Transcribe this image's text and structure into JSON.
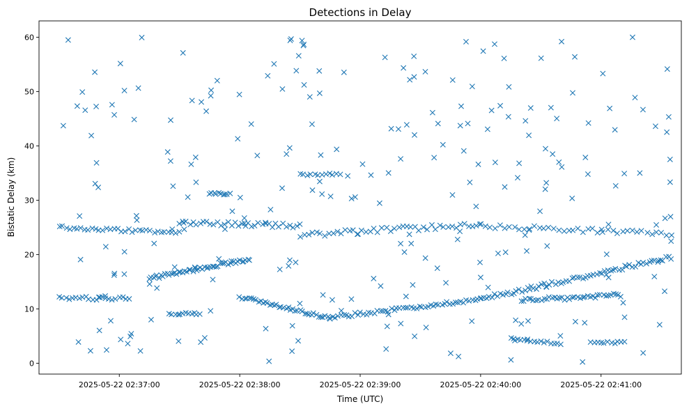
{
  "chart_data": {
    "type": "scatter",
    "title": "Detections in Delay",
    "xlabel": "Time (UTC)",
    "ylabel": "Bistatic Delay (km)",
    "marker": "x",
    "marker_color": "#1f77b4",
    "grid": false,
    "xlim": [
      "2025-05-22 02:36:20",
      "2025-05-22 02:41:40"
    ],
    "ylim": [
      -2,
      63
    ],
    "x_ticks": [
      "2025-05-22 02:37:00",
      "2025-05-22 02:38:00",
      "2025-05-22 02:39:00",
      "2025-05-22 02:40:00",
      "2025-05-22 02:41:00"
    ],
    "y_ticks": [
      0,
      10,
      20,
      30,
      40,
      50,
      60
    ],
    "tracks": [
      {
        "start": "2025-05-22 02:36:30",
        "end": "2025-05-22 02:37:30",
        "delay_start": 25.0,
        "delay_end": 24.0,
        "count": 34,
        "jitter": 0.3
      },
      {
        "start": "2025-05-22 02:37:30",
        "end": "2025-05-22 02:38:30",
        "delay_start": 25.8,
        "delay_end": 25.3,
        "count": 36,
        "jitter": 0.4
      },
      {
        "start": "2025-05-22 02:38:30",
        "end": "2025-05-22 02:40:00",
        "delay_start": 23.6,
        "delay_end": 25.6,
        "count": 45,
        "jitter": 0.5
      },
      {
        "start": "2025-05-22 02:40:00",
        "end": "2025-05-22 02:41:35",
        "delay_start": 25.3,
        "delay_end": 23.8,
        "count": 40,
        "jitter": 0.4
      },
      {
        "start": "2025-05-22 02:36:30",
        "end": "2025-05-22 02:37:05",
        "delay_start": 12.0,
        "delay_end": 11.9,
        "count": 22,
        "jitter": 0.3
      },
      {
        "start": "2025-05-22 02:37:15",
        "end": "2025-05-22 02:38:05",
        "delay_start": 15.6,
        "delay_end": 19.2,
        "count": 52,
        "jitter": 0.3
      },
      {
        "start": "2025-05-22 02:38:00",
        "end": "2025-05-22 02:38:45",
        "delay_start": 12.2,
        "delay_end": 8.3,
        "count": 40,
        "jitter": 0.3
      },
      {
        "start": "2025-05-22 02:38:45",
        "end": "2025-05-22 02:40:00",
        "delay_start": 8.4,
        "delay_end": 11.8,
        "count": 55,
        "jitter": 0.3
      },
      {
        "start": "2025-05-22 02:40:00",
        "end": "2025-05-22 02:41:35",
        "delay_start": 11.8,
        "delay_end": 19.5,
        "count": 70,
        "jitter": 0.4
      },
      {
        "start": "2025-05-22 02:40:20",
        "end": "2025-05-22 02:41:10",
        "delay_start": 11.5,
        "delay_end": 12.5,
        "count": 40,
        "jitter": 0.4
      },
      {
        "start": "2025-05-22 02:40:15",
        "end": "2025-05-22 02:40:40",
        "delay_start": 4.5,
        "delay_end": 3.6,
        "count": 16,
        "jitter": 0.2
      },
      {
        "start": "2025-05-22 02:40:55",
        "end": "2025-05-22 02:41:10",
        "delay_start": 3.8,
        "delay_end": 3.8,
        "count": 10,
        "jitter": 0.2
      },
      {
        "start": "2025-05-22 02:37:25",
        "end": "2025-05-22 02:37:40",
        "delay_start": 9.1,
        "delay_end": 9.1,
        "count": 12,
        "jitter": 0.2
      },
      {
        "start": "2025-05-22 02:37:45",
        "end": "2025-05-22 02:37:55",
        "delay_start": 31.2,
        "delay_end": 31.2,
        "count": 10,
        "jitter": 0.2
      },
      {
        "start": "2025-05-22 02:38:30",
        "end": "2025-05-22 02:38:50",
        "delay_start": 34.7,
        "delay_end": 34.8,
        "count": 12,
        "jitter": 0.2
      }
    ],
    "background_noise": {
      "count": 260,
      "delay_range": [
        0,
        60
      ],
      "time_range": [
        "2025-05-22 02:36:30",
        "2025-05-22 02:41:35"
      ]
    }
  }
}
